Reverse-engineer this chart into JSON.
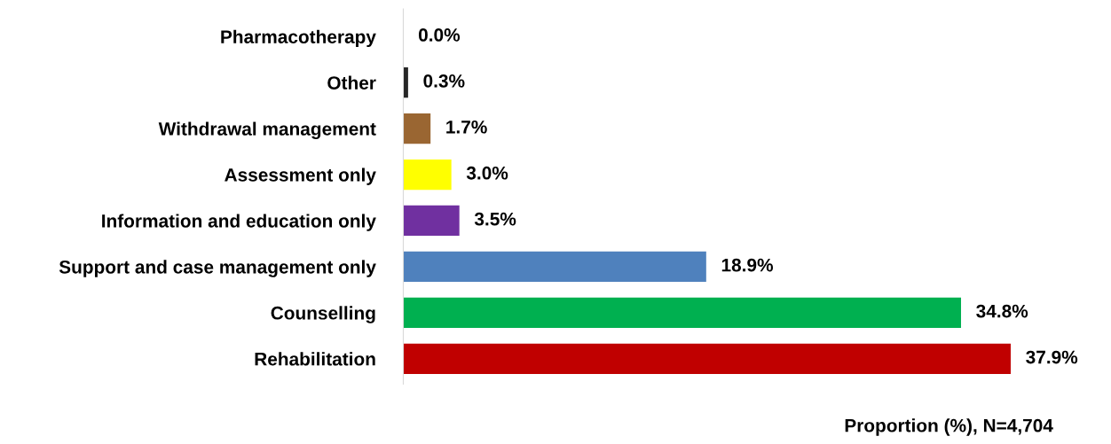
{
  "chart_data": {
    "type": "bar",
    "orientation": "horizontal",
    "categories": [
      "Pharmacotherapy",
      "Other",
      "Withdrawal management",
      "Assessment only",
      "Information and education only",
      "Support and case management only",
      "Counselling",
      "Rehabilitation"
    ],
    "values": [
      0.0,
      0.3,
      1.7,
      3.0,
      3.5,
      18.9,
      34.8,
      37.9
    ],
    "colors": [
      "#bfbfbf",
      "#262626",
      "#9a6632",
      "#ffff00",
      "#7030a0",
      "#4f81bd",
      "#00b050",
      "#c00000"
    ],
    "value_labels": [
      "0.0%",
      "0.3%",
      "1.7%",
      "3.0%",
      "3.5%",
      "18.9%",
      "34.8%",
      "37.9%"
    ],
    "xlabel": "Proportion (%), N=4,704",
    "grid": false,
    "legend": false
  }
}
